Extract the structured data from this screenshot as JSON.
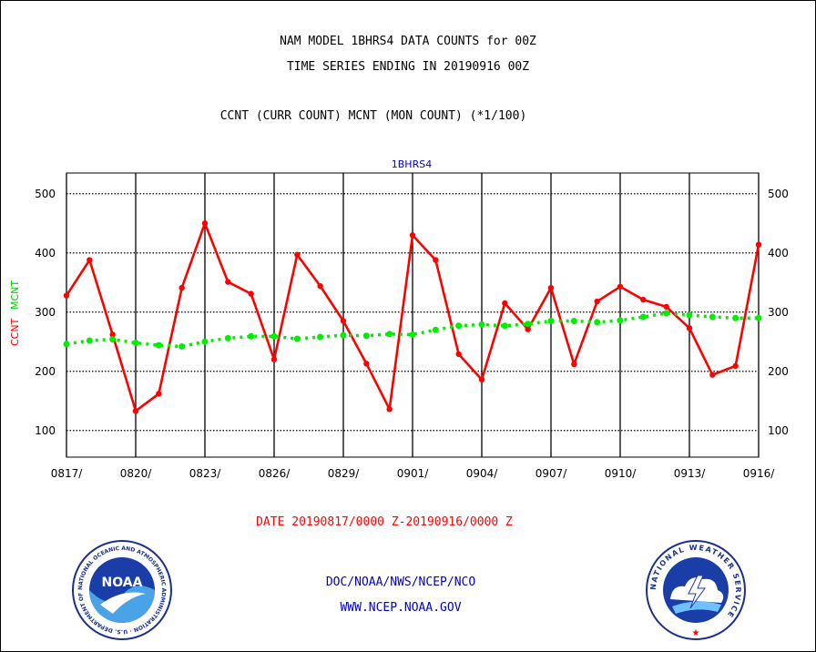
{
  "header": {
    "title_line1": "NAM MODEL 1BHRS4 DATA COUNTS for 00Z",
    "title_line2": "TIME SERIES ENDING IN 20190916 00Z",
    "title_line3": "CCNT (CURR COUNT) MCNT (MON COUNT) (*1/100)"
  },
  "footer": {
    "date_range": "DATE 20190817/0000 Z-20190916/0000 Z",
    "credit_line1": "DOC/NOAA/NWS/NCEP/NCO",
    "credit_line2": "WWW.NCEP.NOAA.GOV"
  },
  "logos": {
    "noaa_text": "NOAA",
    "noaa_ring_text": "NATIONAL OCEANIC AND ATMOSPHERIC ADMINISTRATION · U.S. DEPARTMENT OF COMMERCE",
    "nws_ring_text": "NATIONAL WEATHER SERVICE"
  },
  "chart_data": {
    "type": "line",
    "plot_label": "1BHRS4",
    "ylabel_ccnt": "CCNT",
    "ylabel_mcnt": "MCNT",
    "ylim": [
      55,
      535
    ],
    "yticks": [
      100,
      200,
      300,
      400,
      500
    ],
    "x_tick_labels": [
      "0817/",
      "0820/",
      "0823/",
      "0826/",
      "0829/",
      "0901/",
      "0904/",
      "0907/",
      "0910/",
      "0913/",
      "0916/"
    ],
    "x_tick_days": [
      0,
      3,
      6,
      9,
      12,
      15,
      18,
      21,
      24,
      27,
      30
    ],
    "grid": true,
    "series": [
      {
        "name": "CCNT",
        "color": "#ff0000",
        "values": [
          328,
          388,
          262,
          133,
          162,
          341,
          450,
          351,
          331,
          220,
          397,
          344,
          285,
          213,
          136,
          430,
          388,
          229,
          186,
          315,
          271,
          341,
          212,
          318,
          343,
          321,
          309,
          273,
          194,
          209,
          414
        ]
      },
      {
        "name": "MCNT",
        "color": "#00ee00",
        "values": [
          246,
          252,
          254,
          248,
          244,
          242,
          250,
          256,
          259,
          259,
          255,
          258,
          261,
          260,
          263,
          262,
          270,
          277,
          279,
          277,
          280,
          285,
          285,
          283,
          286,
          292,
          298,
          295,
          292,
          290,
          290
        ]
      }
    ]
  }
}
